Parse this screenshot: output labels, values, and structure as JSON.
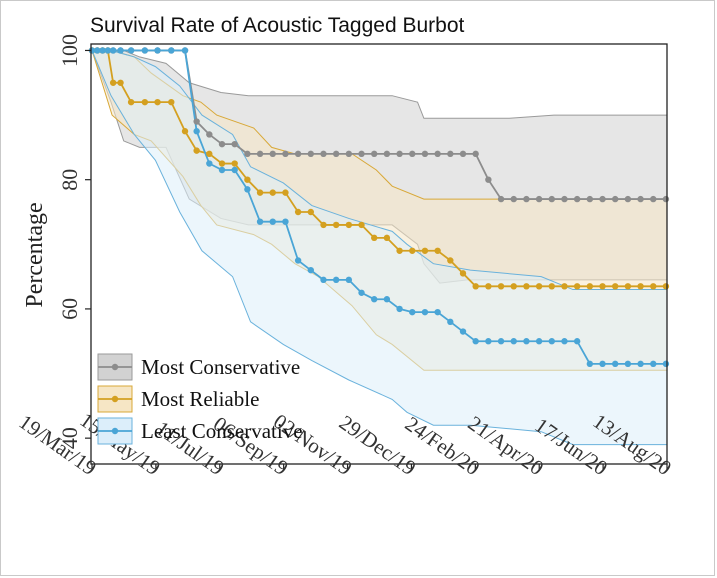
{
  "chart_data": {
    "type": "line",
    "title": "Survival Rate of Acoustic Tagged Burbot",
    "xlabel": "",
    "ylabel": "Percentage",
    "ylim": [
      36,
      101
    ],
    "xlim": [
      "2019-03-19",
      "2020-09-13"
    ],
    "x_ticks": [
      "19/Mar/19",
      "15/May/19",
      "11/Jul/19",
      "06/Sep/19",
      "02/Nov/19",
      "29/Dec/19",
      "24/Feb/20",
      "21/Apr/20",
      "17/Jun/20",
      "13/Aug/20"
    ],
    "y_ticks": [
      40,
      60,
      80,
      100
    ],
    "grid": false,
    "legend_position": "bottom-left",
    "series": [
      {
        "name": "Most Conservative",
        "color": "#8c8c8c",
        "band_fill": "#d2d2d2",
        "band_stroke": "#9a9a9a",
        "x": [
          "2019-03-19",
          "2019-03-24",
          "2019-03-29",
          "2019-04-03",
          "2019-04-08",
          "2019-04-15",
          "2019-04-25",
          "2019-05-08",
          "2019-05-20",
          "2019-06-02",
          "2019-06-15",
          "2019-06-26",
          "2019-07-08",
          "2019-07-20",
          "2019-08-01",
          "2019-08-13",
          "2019-08-25",
          "2019-09-06",
          "2019-09-18",
          "2019-09-30",
          "2019-10-12",
          "2019-10-24",
          "2019-11-05",
          "2019-11-17",
          "2019-11-29",
          "2019-12-11",
          "2019-12-23",
          "2020-01-04",
          "2020-01-16",
          "2020-01-28",
          "2020-02-09",
          "2020-02-21",
          "2020-03-04",
          "2020-03-16",
          "2020-03-28",
          "2020-04-09",
          "2020-04-21",
          "2020-05-03",
          "2020-05-15",
          "2020-05-27",
          "2020-06-08",
          "2020-06-20",
          "2020-07-02",
          "2020-07-14",
          "2020-07-26",
          "2020-08-07",
          "2020-08-19",
          "2020-08-31",
          "2020-09-12"
        ],
        "y": [
          100,
          100,
          100,
          100,
          100,
          100,
          100,
          100,
          100,
          100,
          100,
          89,
          87,
          85.5,
          85.5,
          84,
          84,
          84,
          84,
          84,
          84,
          84,
          84,
          84,
          84,
          84,
          84,
          84,
          84,
          84,
          84,
          84,
          84,
          84,
          80,
          77,
          77,
          77,
          77,
          77,
          77,
          77,
          77,
          77,
          77,
          77,
          77,
          77,
          77
        ],
        "lower": [
          [
            0,
            100
          ],
          [
            18,
            92
          ],
          [
            30,
            86
          ],
          [
            45,
            85
          ],
          [
            70,
            85
          ],
          [
            92,
            77
          ],
          [
            122,
            74
          ],
          [
            148,
            73
          ],
          [
            179,
            73
          ],
          [
            226,
            73
          ],
          [
            284,
            73
          ],
          [
            308,
            70
          ],
          [
            314,
            67
          ],
          [
            329,
            64
          ],
          [
            355,
            64.5
          ],
          [
            395,
            64.5
          ],
          [
            437,
            64.5
          ],
          [
            544,
            64.5
          ]
        ],
        "upper": [
          [
            0,
            100
          ],
          [
            18,
            100
          ],
          [
            30,
            100
          ],
          [
            45,
            99
          ],
          [
            70,
            98
          ],
          [
            92,
            95
          ],
          [
            122,
            93.5
          ],
          [
            148,
            93
          ],
          [
            179,
            93
          ],
          [
            226,
            93
          ],
          [
            284,
            93
          ],
          [
            308,
            92
          ],
          [
            314,
            89.5
          ],
          [
            329,
            89.5
          ],
          [
            355,
            89.5
          ],
          [
            395,
            89.5
          ],
          [
            437,
            90
          ],
          [
            544,
            90
          ]
        ]
      },
      {
        "name": "Most Reliable",
        "color": "#d4a020",
        "band_fill": "#f6e6c5",
        "band_stroke": "#d8a838",
        "x": [
          "2019-03-19",
          "2019-03-24",
          "2019-03-29",
          "2019-04-03",
          "2019-04-08",
          "2019-04-15",
          "2019-04-25",
          "2019-05-08",
          "2019-05-20",
          "2019-06-02",
          "2019-06-15",
          "2019-06-26",
          "2019-07-08",
          "2019-07-20",
          "2019-08-01",
          "2019-08-13",
          "2019-08-25",
          "2019-09-06",
          "2019-09-18",
          "2019-09-30",
          "2019-10-12",
          "2019-10-24",
          "2019-11-05",
          "2019-11-17",
          "2019-11-29",
          "2019-12-11",
          "2019-12-23",
          "2020-01-04",
          "2020-01-16",
          "2020-01-28",
          "2020-02-09",
          "2020-02-21",
          "2020-03-04",
          "2020-03-16",
          "2020-03-28",
          "2020-04-09",
          "2020-04-21",
          "2020-05-03",
          "2020-05-15",
          "2020-05-27",
          "2020-06-08",
          "2020-06-20",
          "2020-07-02",
          "2020-07-14",
          "2020-07-26",
          "2020-08-07",
          "2020-08-19",
          "2020-08-31",
          "2020-09-12"
        ],
        "y": [
          100,
          100,
          100,
          100,
          95,
          95,
          92,
          92,
          92,
          92,
          87.5,
          84.5,
          84,
          82.5,
          82.5,
          80,
          78,
          78,
          78,
          75,
          75,
          73,
          73,
          73,
          73,
          71,
          71,
          69,
          69,
          69,
          69,
          67.5,
          65.5,
          63.5,
          63.5,
          63.5,
          63.5,
          63.5,
          63.5,
          63.5,
          63.5,
          63.5,
          63.5,
          63.5,
          63.5,
          63.5,
          63.5,
          63.5,
          63.5
        ],
        "lower": [
          [
            0,
            100
          ],
          [
            19,
            90
          ],
          [
            40,
            87
          ],
          [
            56,
            86
          ],
          [
            86,
            80.5
          ],
          [
            103,
            76
          ],
          [
            118,
            73
          ],
          [
            153,
            71.5
          ],
          [
            170,
            70
          ],
          [
            192,
            67
          ],
          [
            214,
            65
          ],
          [
            246,
            60.5
          ],
          [
            269,
            56
          ],
          [
            284,
            54.5
          ],
          [
            314,
            50.5
          ],
          [
            544,
            50.5
          ]
        ],
        "upper": [
          [
            0,
            100
          ],
          [
            19,
            100
          ],
          [
            40,
            99
          ],
          [
            56,
            96.5
          ],
          [
            86,
            93
          ],
          [
            103,
            92
          ],
          [
            118,
            90
          ],
          [
            153,
            88
          ],
          [
            170,
            85
          ],
          [
            192,
            84
          ],
          [
            214,
            84
          ],
          [
            246,
            84
          ],
          [
            269,
            81.5
          ],
          [
            284,
            79
          ],
          [
            314,
            77
          ],
          [
            544,
            77
          ]
        ]
      },
      {
        "name": "Least Conservative",
        "color": "#4aa5d6",
        "band_fill": "#dceefa",
        "band_stroke": "#6ab2dc",
        "x": [
          "2019-03-19",
          "2019-03-24",
          "2019-03-29",
          "2019-04-03",
          "2019-04-08",
          "2019-04-15",
          "2019-04-25",
          "2019-05-08",
          "2019-05-20",
          "2019-06-02",
          "2019-06-15",
          "2019-06-26",
          "2019-07-08",
          "2019-07-20",
          "2019-08-01",
          "2019-08-13",
          "2019-08-25",
          "2019-09-06",
          "2019-09-18",
          "2019-09-30",
          "2019-10-12",
          "2019-10-24",
          "2019-11-05",
          "2019-11-17",
          "2019-11-29",
          "2019-12-11",
          "2019-12-23",
          "2020-01-04",
          "2020-01-16",
          "2020-01-28",
          "2020-02-09",
          "2020-02-21",
          "2020-03-04",
          "2020-03-16",
          "2020-03-28",
          "2020-04-09",
          "2020-04-21",
          "2020-05-03",
          "2020-05-15",
          "2020-05-27",
          "2020-06-08",
          "2020-06-20",
          "2020-07-02",
          "2020-07-14",
          "2020-07-26",
          "2020-08-07",
          "2020-08-19",
          "2020-08-31",
          "2020-09-12"
        ],
        "y": [
          100,
          100,
          100,
          100,
          100,
          100,
          100,
          100,
          100,
          100,
          100,
          87.5,
          82.5,
          81.5,
          81.5,
          78.5,
          73.5,
          73.5,
          73.5,
          67.5,
          66,
          64.5,
          64.5,
          64.5,
          62.5,
          61.5,
          61.5,
          60,
          59.5,
          59.5,
          59.5,
          58,
          56.5,
          55,
          55,
          55,
          55,
          55,
          55,
          55,
          55,
          55,
          51.5,
          51.5,
          51.5,
          51.5,
          51.5,
          51.5,
          51.5
        ],
        "lower": [
          [
            0,
            100
          ],
          [
            18,
            93
          ],
          [
            40,
            87
          ],
          [
            60,
            83
          ],
          [
            83,
            75
          ],
          [
            104,
            69
          ],
          [
            133,
            65
          ],
          [
            150,
            58
          ],
          [
            181,
            54.5
          ],
          [
            208,
            52
          ],
          [
            243,
            49
          ],
          [
            284,
            46
          ],
          [
            298,
            44
          ],
          [
            323,
            42
          ],
          [
            358,
            42
          ],
          [
            425,
            41
          ],
          [
            455,
            39
          ],
          [
            544,
            39
          ]
        ],
        "upper": [
          [
            0,
            100
          ],
          [
            18,
            100
          ],
          [
            40,
            99
          ],
          [
            60,
            97.5
          ],
          [
            83,
            94.5
          ],
          [
            104,
            90
          ],
          [
            133,
            87
          ],
          [
            150,
            82
          ],
          [
            181,
            79.5
          ],
          [
            208,
            76
          ],
          [
            243,
            74
          ],
          [
            284,
            72
          ],
          [
            298,
            70
          ],
          [
            323,
            67
          ],
          [
            358,
            66
          ],
          [
            425,
            65
          ],
          [
            455,
            63
          ],
          [
            544,
            63
          ]
        ]
      }
    ]
  }
}
